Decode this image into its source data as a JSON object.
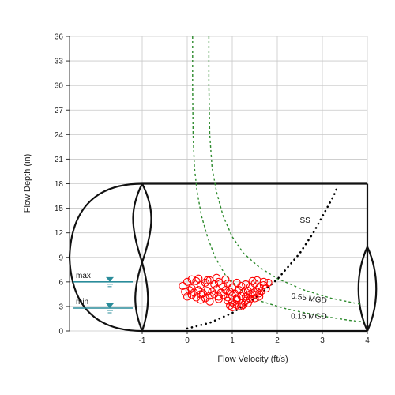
{
  "chart_data": {
    "type": "scatter",
    "xlabel": "Flow Velocity (ft/s)",
    "ylabel": "Flow Depth (in)",
    "xlim": [
      -1,
      4
    ],
    "ylim": [
      0,
      36
    ],
    "x_ticks": [
      -1,
      0,
      1,
      2,
      3,
      4
    ],
    "y_ticks": [
      0,
      3,
      6,
      9,
      12,
      15,
      18,
      21,
      24,
      27,
      30,
      33,
      36
    ],
    "grid": true,
    "pipe_diameter": 18,
    "levels": [
      {
        "label": "max",
        "depth": 6
      },
      {
        "label": "min",
        "depth": 2.8
      }
    ],
    "annotations": [
      {
        "text": "SS",
        "x": 2.5,
        "y": 13.2
      },
      {
        "text": "0.55 MGD",
        "x": 2.3,
        "y": 4.0
      },
      {
        "text": "0.15 MGD",
        "x": 2.3,
        "y": 1.5
      }
    ],
    "ss_curve": {
      "x": [
        0.0,
        0.5,
        1.0,
        1.5,
        2.0,
        2.5,
        2.8,
        3.05,
        3.25,
        3.35
      ],
      "y": [
        0.3,
        1.0,
        2.2,
        4.0,
        6.3,
        9.5,
        12.0,
        14.5,
        16.5,
        17.8
      ]
    },
    "series": [
      {
        "name": "0.55 MGD",
        "color": "#2e8b2e",
        "x": [
          0.48,
          0.48,
          0.5,
          0.55,
          0.65,
          0.8,
          1.0,
          1.25,
          1.6,
          2.0,
          2.6,
          3.2,
          3.9
        ],
        "y": [
          36,
          30,
          24,
          20,
          17,
          14,
          11.5,
          9.5,
          7.8,
          6.4,
          5.0,
          4.0,
          3.2
        ]
      },
      {
        "name": "0.15 MGD",
        "color": "#2e8b2e",
        "x": [
          0.12,
          0.12,
          0.13,
          0.16,
          0.22,
          0.32,
          0.45,
          0.62,
          0.85,
          1.2,
          1.6,
          2.2,
          2.9,
          3.6,
          3.95
        ],
        "y": [
          36,
          30,
          24,
          20,
          17,
          14,
          11.5,
          9.0,
          6.8,
          5.0,
          3.7,
          2.7,
          1.9,
          1.3,
          1.1
        ]
      },
      {
        "name": "observations",
        "color": "#ff0000",
        "x": [
          -0.1,
          0.0,
          0.1,
          0.2,
          0.3,
          0.4,
          0.5,
          0.6,
          0.7,
          0.8,
          0.9,
          1.0,
          1.1,
          1.2,
          1.3,
          1.4,
          1.5,
          1.6,
          1.7,
          1.8,
          -0.05,
          0.05,
          0.15,
          0.25,
          0.35,
          0.45,
          0.55,
          0.65,
          0.75,
          0.85,
          0.95,
          1.05,
          1.15,
          1.25,
          1.35,
          1.45,
          1.55,
          1.65,
          1.75,
          0.0,
          0.1,
          0.2,
          0.3,
          0.4,
          0.5,
          0.6,
          0.7,
          0.8,
          0.9,
          1.0,
          1.1,
          1.2,
          1.3,
          1.4,
          1.5,
          1.6,
          0.3,
          0.5,
          0.7,
          0.9,
          1.0,
          1.1,
          1.2,
          1.3,
          1.4,
          1.5,
          1.6,
          0.95,
          1.05,
          1.15,
          1.25,
          1.35,
          0.1,
          0.25,
          0.45,
          0.65,
          0.85,
          1.45,
          1.55,
          1.7,
          1.0,
          1.1,
          1.2
        ],
        "y": [
          5.5,
          6.0,
          5.2,
          6.1,
          5.6,
          5.9,
          6.2,
          5.7,
          6.0,
          5.4,
          5.8,
          5.3,
          5.9,
          5.5,
          5.7,
          5.4,
          5.8,
          5.3,
          5.6,
          5.9,
          4.8,
          5.0,
          4.7,
          5.0,
          4.6,
          4.9,
          4.8,
          5.1,
          4.7,
          5.0,
          4.8,
          4.6,
          5.0,
          4.7,
          4.9,
          4.6,
          4.8,
          4.9,
          5.2,
          4.2,
          4.4,
          4.1,
          4.5,
          4.0,
          4.3,
          4.5,
          4.2,
          4.4,
          4.1,
          4.3,
          4.0,
          4.3,
          4.2,
          4.5,
          4.4,
          4.6,
          3.8,
          3.6,
          3.9,
          3.7,
          3.5,
          3.8,
          3.4,
          3.7,
          3.9,
          4.0,
          4.2,
          3.1,
          3.3,
          3.0,
          3.2,
          3.4,
          6.3,
          6.4,
          6.2,
          6.5,
          6.3,
          6.1,
          6.2,
          6.0,
          2.9,
          3.2,
          3.0
        ]
      }
    ]
  }
}
